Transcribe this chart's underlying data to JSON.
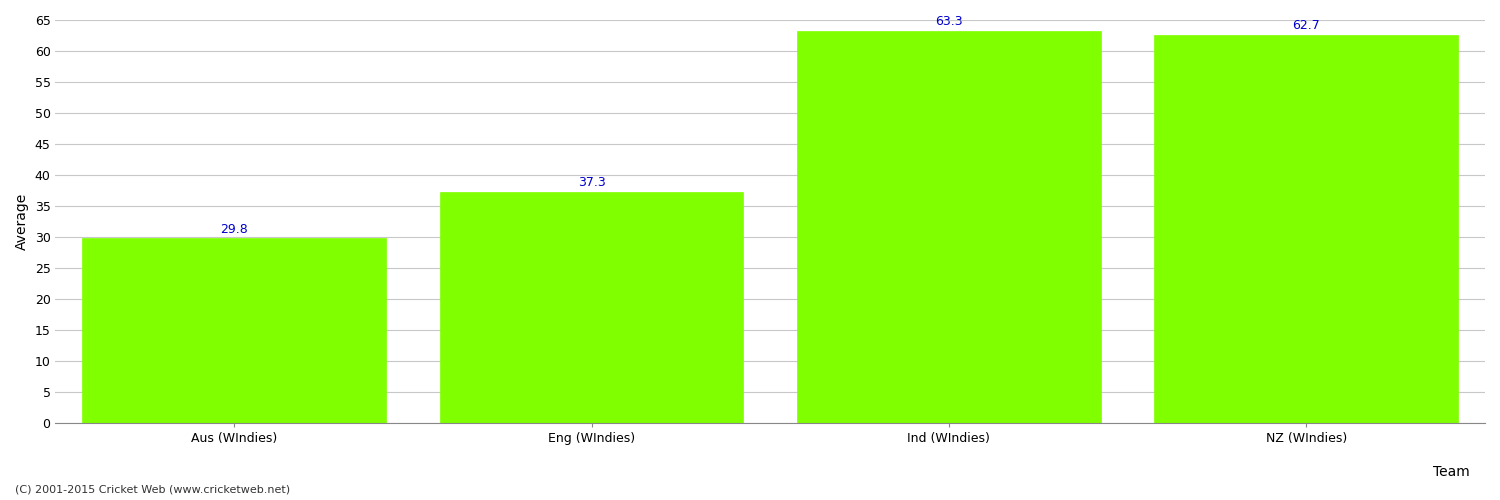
{
  "categories": [
    "Aus (WIndies)",
    "Eng (WIndies)",
    "Ind (WIndies)",
    "NZ (WIndies)"
  ],
  "values": [
    29.8,
    37.3,
    63.3,
    62.7
  ],
  "bar_color": "#7FFF00",
  "bar_edge_color": "#7FFF00",
  "value_label_color": "#0000CC",
  "xlabel": "Team",
  "ylabel": "Average",
  "ylim": [
    0,
    65
  ],
  "yticks": [
    0,
    5,
    10,
    15,
    20,
    25,
    30,
    35,
    40,
    45,
    50,
    55,
    60,
    65
  ],
  "grid_color": "#C8C8C8",
  "background_color": "#FFFFFF",
  "footer_text": "(C) 2001-2015 Cricket Web (www.cricketweb.net)",
  "value_fontsize": 9,
  "axis_label_fontsize": 10,
  "tick_fontsize": 9,
  "footer_fontsize": 8
}
